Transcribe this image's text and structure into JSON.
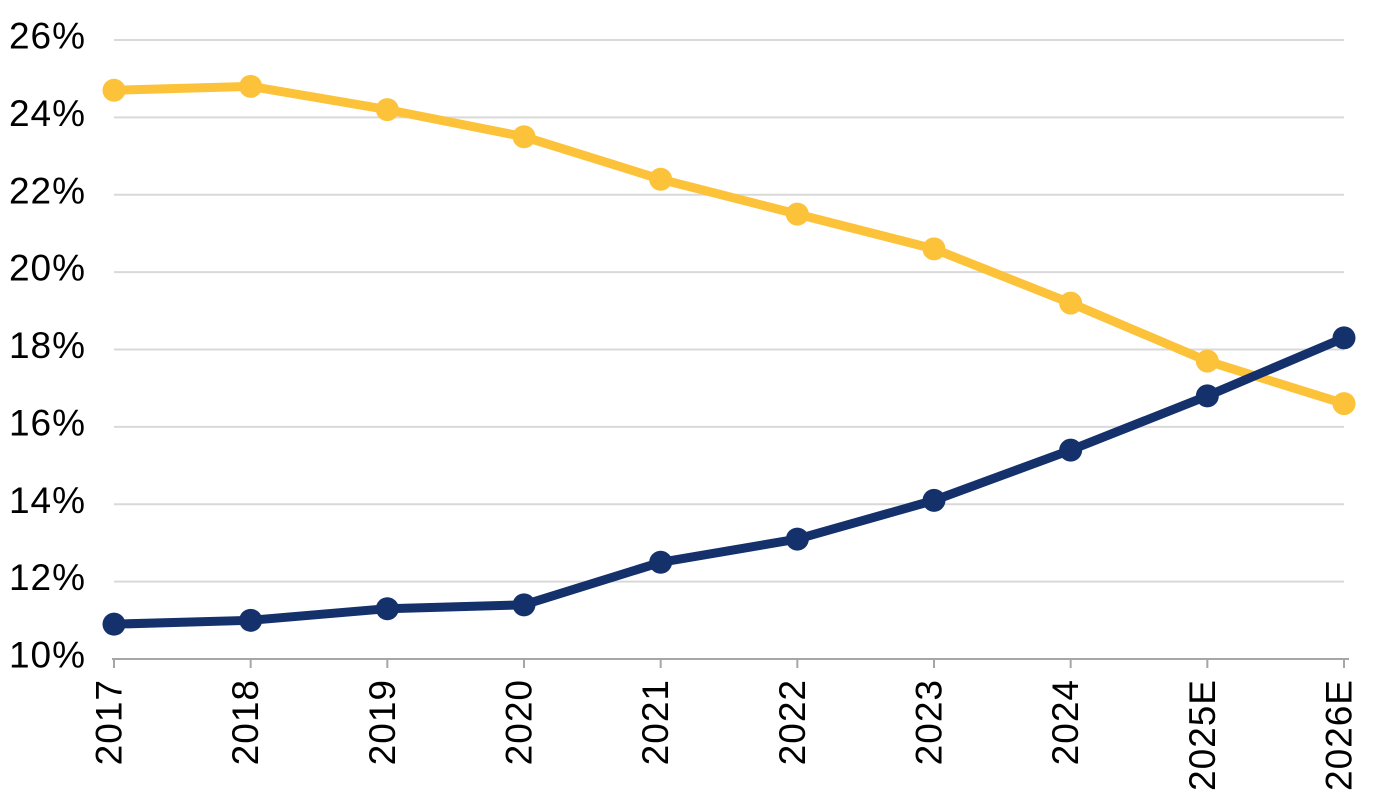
{
  "chart_data": {
    "type": "line",
    "title": "",
    "xlabel": "",
    "ylabel": "",
    "categories": [
      "2017",
      "2018",
      "2019",
      "2020",
      "2021",
      "2022",
      "2023",
      "2024",
      "2025E",
      "2026E"
    ],
    "series": [
      {
        "id": "gold-declining-series",
        "color": "#FCC33A",
        "values": [
          24.7,
          24.8,
          24.2,
          23.5,
          22.4,
          21.5,
          20.6,
          19.2,
          17.7,
          16.6
        ]
      },
      {
        "id": "navy-rising-series",
        "color": "#14316B",
        "values": [
          10.9,
          11.0,
          11.3,
          11.4,
          12.5,
          13.1,
          14.1,
          15.4,
          16.8,
          18.3
        ]
      }
    ],
    "ylim": [
      10,
      26
    ],
    "ytick_step": 2,
    "y_tick_labels": [
      "10%",
      "12%",
      "14%",
      "16%",
      "18%",
      "20%",
      "22%",
      "24%",
      "26%"
    ],
    "x_tick_labels": [
      "2017",
      "2018",
      "2019",
      "2020",
      "2021",
      "2022",
      "2023",
      "2024",
      "2025E",
      "2026E"
    ],
    "grid": true,
    "legend": "none",
    "colors": {
      "gridline": "#D9D9D9",
      "axis_line": "#A6A6A6",
      "tick_mark": "#A6A6A6",
      "tick_label": "#000000",
      "background": "#FFFFFF"
    }
  }
}
